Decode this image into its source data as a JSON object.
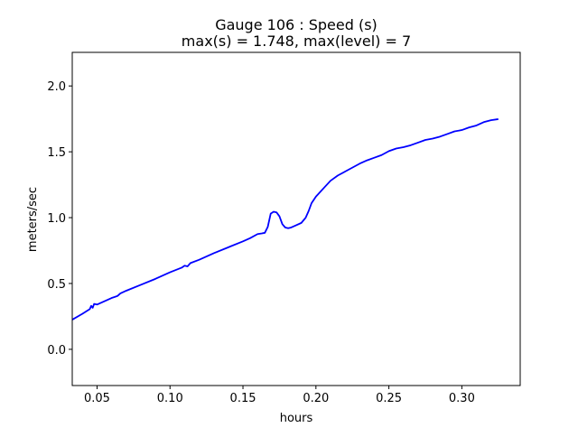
{
  "chart_data": {
    "type": "line",
    "title_line1": "Gauge 106 : Speed (s)",
    "title_line2": "max(s) =   1.748,    max(level) = 7",
    "xlabel": "hours",
    "ylabel": "meters/sec",
    "xlim": [
      0.033,
      0.34
    ],
    "ylim": [
      -0.275,
      2.255
    ],
    "x_ticks": [
      0.05,
      0.1,
      0.15,
      0.2,
      0.25,
      0.3
    ],
    "x_tick_labels": [
      "0.05",
      "0.10",
      "0.15",
      "0.20",
      "0.25",
      "0.30"
    ],
    "y_ticks": [
      0.0,
      0.5,
      1.0,
      1.5,
      2.0
    ],
    "y_tick_labels": [
      "0.0",
      "0.5",
      "1.0",
      "1.5",
      "2.0"
    ],
    "grid": false,
    "series": [
      {
        "color": "#0000ff",
        "x": [
          0.033,
          0.04,
          0.045,
          0.046,
          0.047,
          0.048,
          0.05,
          0.055,
          0.06,
          0.064,
          0.066,
          0.07,
          0.08,
          0.09,
          0.1,
          0.108,
          0.11,
          0.112,
          0.114,
          0.12,
          0.13,
          0.14,
          0.15,
          0.155,
          0.16,
          0.163,
          0.165,
          0.167,
          0.169,
          0.171,
          0.173,
          0.175,
          0.177,
          0.179,
          0.181,
          0.183,
          0.186,
          0.19,
          0.193,
          0.195,
          0.197,
          0.2,
          0.205,
          0.21,
          0.215,
          0.22,
          0.225,
          0.23,
          0.235,
          0.24,
          0.245,
          0.25,
          0.255,
          0.26,
          0.265,
          0.27,
          0.275,
          0.28,
          0.285,
          0.29,
          0.295,
          0.3,
          0.305,
          0.31,
          0.315,
          0.32,
          0.325
        ],
        "y": [
          0.225,
          0.27,
          0.305,
          0.33,
          0.315,
          0.345,
          0.34,
          0.365,
          0.39,
          0.405,
          0.425,
          0.445,
          0.49,
          0.535,
          0.585,
          0.62,
          0.635,
          0.63,
          0.655,
          0.68,
          0.73,
          0.775,
          0.82,
          0.845,
          0.875,
          0.88,
          0.885,
          0.93,
          1.03,
          1.045,
          1.04,
          1.01,
          0.95,
          0.925,
          0.92,
          0.925,
          0.94,
          0.96,
          1.0,
          1.05,
          1.11,
          1.16,
          1.22,
          1.28,
          1.32,
          1.35,
          1.38,
          1.41,
          1.435,
          1.455,
          1.475,
          1.505,
          1.525,
          1.535,
          1.55,
          1.57,
          1.59,
          1.6,
          1.615,
          1.635,
          1.655,
          1.665,
          1.685,
          1.7,
          1.725,
          1.74,
          1.748
        ]
      }
    ]
  }
}
